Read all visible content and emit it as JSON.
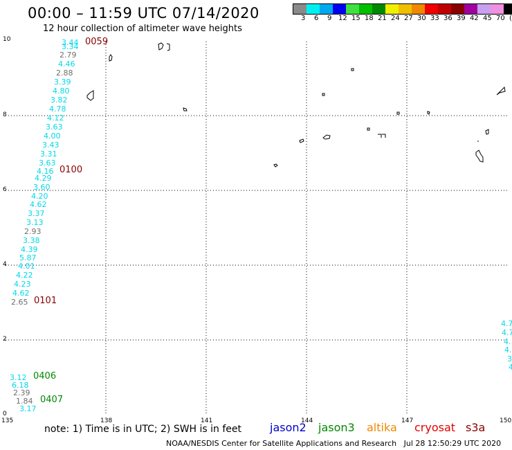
{
  "header": {
    "title": "00:00 – 11:59 UTC 07/14/2020",
    "subtitle": "12 hour collection of altimeter wave heights"
  },
  "colorbar": {
    "colors": [
      "#8a8a8a",
      "#00f0f0",
      "#00a8f0",
      "#0000f0",
      "#40e040",
      "#00c000",
      "#008800",
      "#f0f000",
      "#f0c000",
      "#f08800",
      "#f00000",
      "#c00000",
      "#880000",
      "#a000a0",
      "#c8a0f0",
      "#f090e0",
      "#000000"
    ],
    "labels": [
      "3",
      "6",
      "9",
      "12",
      "15",
      "18",
      "21",
      "24",
      "27",
      "30",
      "33",
      "36",
      "39",
      "42",
      "45",
      "70",
      "(ft)"
    ]
  },
  "axes": {
    "y_ticks": [
      "10",
      "8",
      "6",
      "4",
      "2",
      "0"
    ],
    "x_ticks": [
      "135",
      "138",
      "141",
      "144",
      "147",
      "150"
    ]
  },
  "measurements": [
    {
      "v": "3.44",
      "c": "cy"
    },
    {
      "v": "3.34",
      "c": "cy"
    },
    {
      "v": "2.79",
      "c": "gr"
    },
    {
      "v": "4.46",
      "c": "cy"
    },
    {
      "v": "2.88",
      "c": "gr"
    },
    {
      "v": "3.39",
      "c": "cy"
    },
    {
      "v": "4.80",
      "c": "cy"
    },
    {
      "v": "3.82",
      "c": "cy"
    },
    {
      "v": "4.78",
      "c": "cy"
    },
    {
      "v": "4.12",
      "c": "cy"
    },
    {
      "v": "3.63",
      "c": "cy"
    },
    {
      "v": "4.00",
      "c": "cy"
    },
    {
      "v": "3.43",
      "c": "cy"
    },
    {
      "v": "3.31",
      "c": "cy"
    },
    {
      "v": "3.63",
      "c": "cy"
    },
    {
      "v": "4.16",
      "c": "cy"
    },
    {
      "v": "4.29",
      "c": "cy"
    },
    {
      "v": "3.60",
      "c": "cy"
    },
    {
      "v": "4.20",
      "c": "cy"
    },
    {
      "v": "4.62",
      "c": "cy"
    },
    {
      "v": "3.37",
      "c": "cy"
    },
    {
      "v": "3.13",
      "c": "cy"
    },
    {
      "v": "2.93",
      "c": "gr"
    },
    {
      "v": "3.38",
      "c": "cy"
    },
    {
      "v": "4.39",
      "c": "cy"
    },
    {
      "v": "5.87",
      "c": "cy"
    },
    {
      "v": "4.01",
      "c": "cy"
    },
    {
      "v": "4.22",
      "c": "cy"
    },
    {
      "v": "4.23",
      "c": "cy"
    },
    {
      "v": "4.62",
      "c": "cy"
    },
    {
      "v": "2.65",
      "c": "gr"
    },
    {
      "v": "3.12",
      "c": "cy"
    },
    {
      "v": "6.18",
      "c": "cy"
    },
    {
      "v": "2.39",
      "c": "gr"
    },
    {
      "v": "1.84",
      "c": "gr"
    },
    {
      "v": "3.17",
      "c": "cy"
    },
    {
      "v": "4.7",
      "c": "cy"
    },
    {
      "v": "4.7",
      "c": "cy"
    },
    {
      "v": "4.",
      "c": "cy"
    },
    {
      "v": "4.",
      "c": "cy"
    },
    {
      "v": "3",
      "c": "cy"
    },
    {
      "v": "4",
      "c": "cy"
    }
  ],
  "time_labels": [
    {
      "t": "0059",
      "color": "#880000"
    },
    {
      "t": "0100",
      "color": "#880000"
    },
    {
      "t": "0101",
      "color": "#880000"
    },
    {
      "t": "0406",
      "color": "#008800"
    },
    {
      "t": "0407",
      "color": "#008800"
    }
  ],
  "note": "note:  1) Time is in UTC;  2) SWH is in feet",
  "satellites": [
    {
      "name": "jason2",
      "color": "#0000c8"
    },
    {
      "name": "jason3",
      "color": "#008800"
    },
    {
      "name": "altika",
      "color": "#f08800"
    },
    {
      "name": "cryosat",
      "color": "#e00000"
    },
    {
      "name": "s3a",
      "color": "#880000"
    }
  ],
  "footer": {
    "credit": "NOAA/NESDIS Center for Satellite Applications and Research",
    "timestamp": "Jul 28 12:50:29 UTC 2020"
  }
}
